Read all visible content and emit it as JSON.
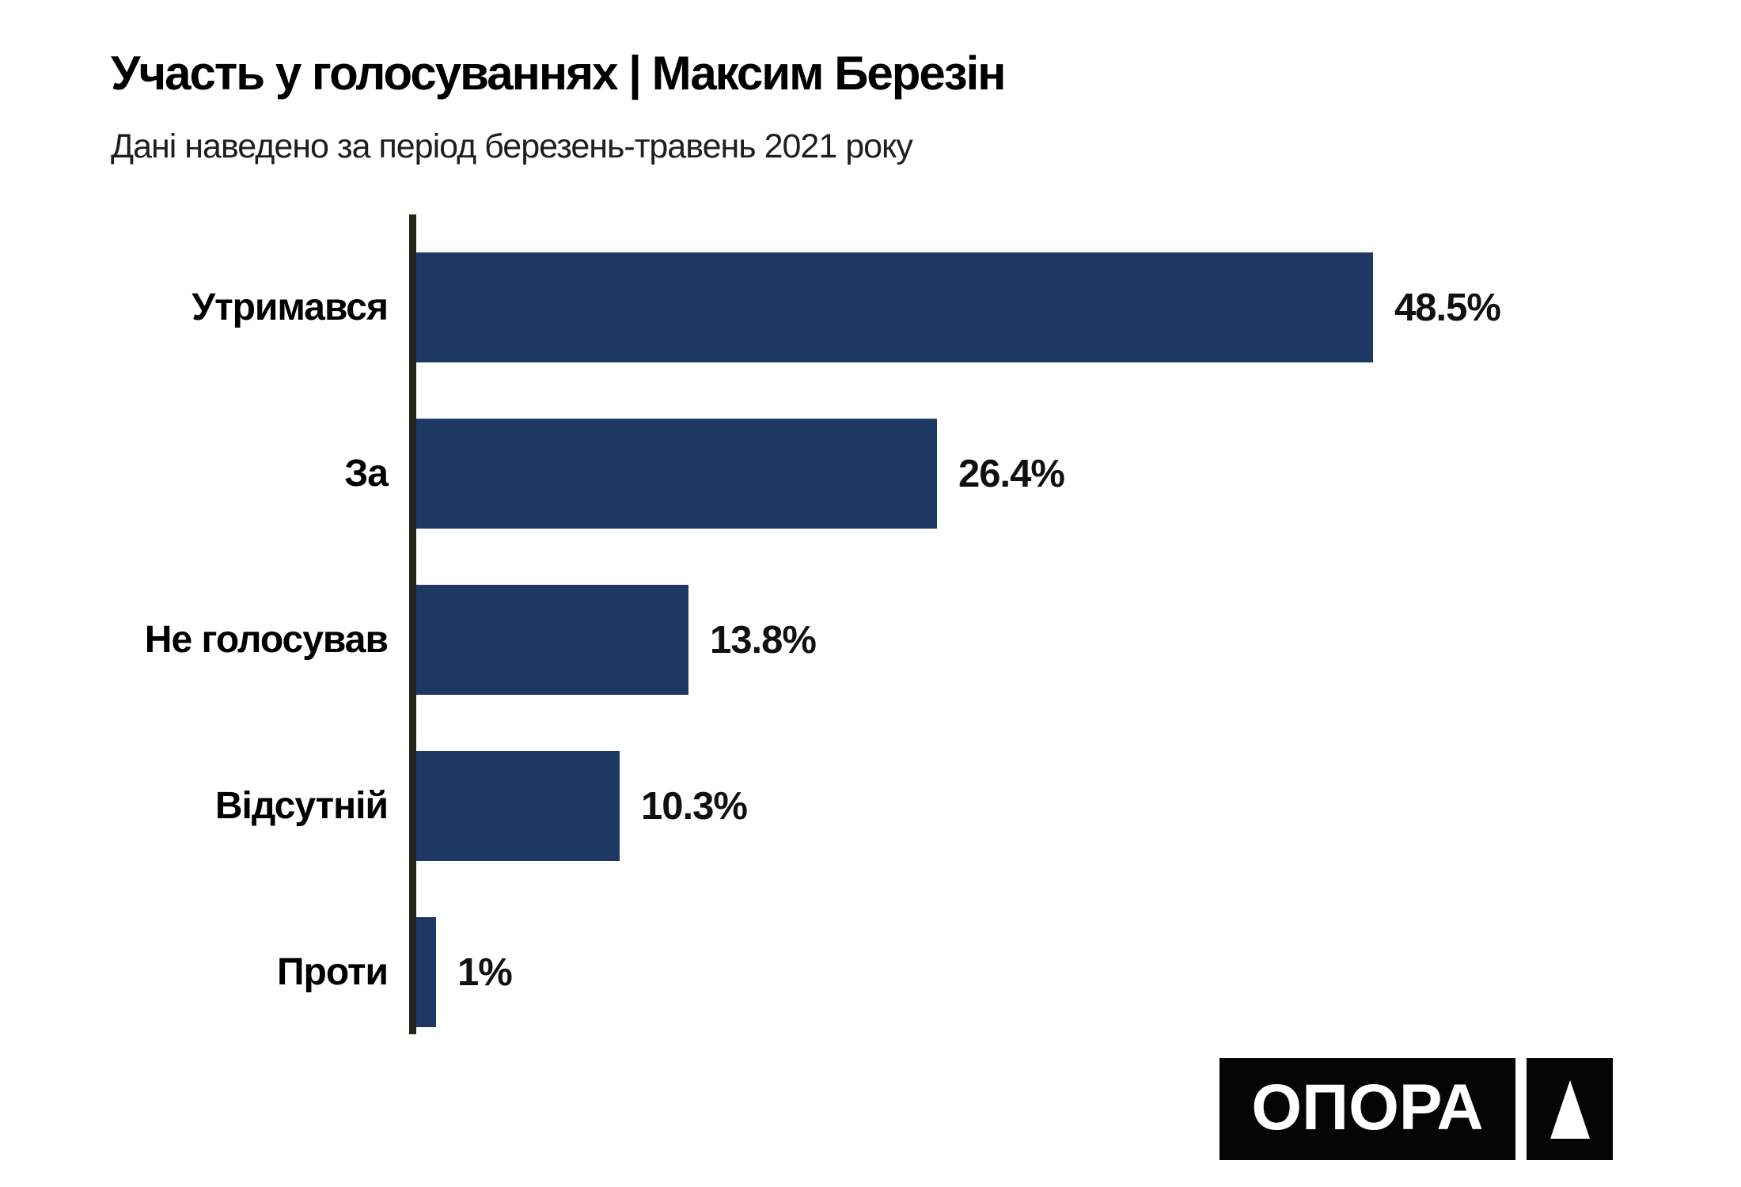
{
  "header": {
    "title": "Участь у голосуваннях | Максим Березін",
    "subtitle": "Дані наведено за період березень-травень 2021 року"
  },
  "chart_data": {
    "type": "bar",
    "orientation": "horizontal",
    "title": "Участь у голосуваннях | Максим Березін",
    "subtitle": "Дані наведено за період березень-травень 2021 року",
    "categories": [
      "Утримався",
      "За",
      "Не голосував",
      "Відсутній",
      "Проти"
    ],
    "values": [
      48.5,
      26.4,
      13.8,
      10.3,
      1
    ],
    "value_labels": [
      "48.5%",
      "26.4%",
      "13.8%",
      "10.3%",
      "1%"
    ],
    "xlim": [
      0,
      50
    ],
    "grid": false,
    "legend": false,
    "bar_color": "#1e3864",
    "axis_color": "#22251c",
    "background_color": "#ffffff"
  },
  "logo": {
    "text": "ОПОРА",
    "symbol": "triangle-icon"
  }
}
